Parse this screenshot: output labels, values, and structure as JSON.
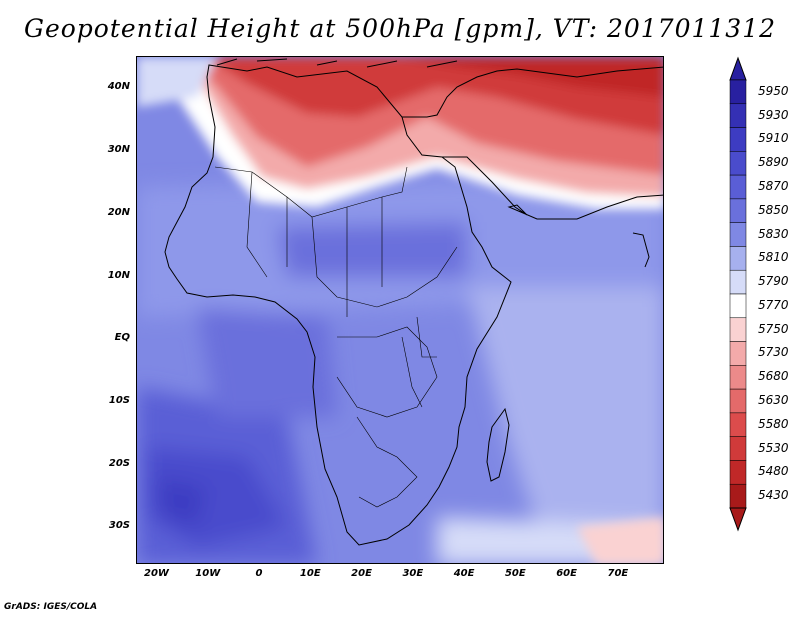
{
  "title": "Geopotential Height at 500hPa [gpm], VT: 2017011312",
  "footer": "GrADS: IGES/COLA",
  "map": {
    "field": "geopotential height",
    "level": "500hPa",
    "units": "gpm",
    "region": "Africa",
    "lon_range": [
      -24,
      79
    ],
    "lat_range": [
      -36,
      45
    ],
    "lat_ticks": [
      "40N",
      "30N",
      "20N",
      "10N",
      "EQ",
      "10S",
      "20S",
      "30S"
    ],
    "lat_values": [
      40,
      30,
      20,
      10,
      0,
      -10,
      -20,
      -30
    ],
    "lon_ticks": [
      "20W",
      "10W",
      "0",
      "10E",
      "20E",
      "30E",
      "40E",
      "50E",
      "60E",
      "70E"
    ],
    "lon_values": [
      -20,
      -10,
      0,
      10,
      20,
      30,
      40,
      50,
      60,
      70
    ]
  },
  "colorbar": {
    "labels": [
      "5950",
      "5930",
      "5910",
      "5890",
      "5870",
      "5850",
      "5830",
      "5810",
      "5790",
      "5770",
      "5750",
      "5730",
      "5680",
      "5630",
      "5580",
      "5530",
      "5480",
      "5430"
    ],
    "colors": [
      "#2820a0",
      "#3430b4",
      "#3d3cc2",
      "#4a4ccc",
      "#5a5ed6",
      "#6a70dc",
      "#7f88e4",
      "#a6b0ee",
      "#d6dcf8",
      "#ffffff",
      "#fad2d2",
      "#f3aaaa",
      "#ec8a8a",
      "#e46a6a",
      "#dc4c4c",
      "#d03a3a",
      "#c02828",
      "#a81a1a"
    ]
  }
}
